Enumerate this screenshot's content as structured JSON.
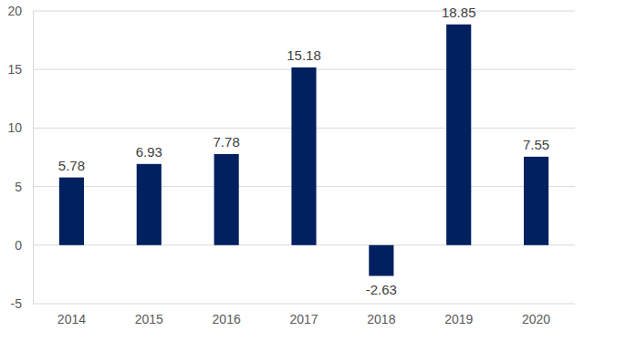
{
  "chart_data": {
    "type": "bar",
    "categories": [
      "2014",
      "2015",
      "2016",
      "2017",
      "2018",
      "2019",
      "2020"
    ],
    "values": [
      5.78,
      6.93,
      7.78,
      15.18,
      -2.63,
      18.85,
      7.55
    ],
    "color": "#002060",
    "ylim": [
      -5,
      20
    ],
    "yticks": [
      -5,
      0,
      5,
      10,
      15,
      20
    ],
    "grid": true,
    "data_labels": true
  }
}
